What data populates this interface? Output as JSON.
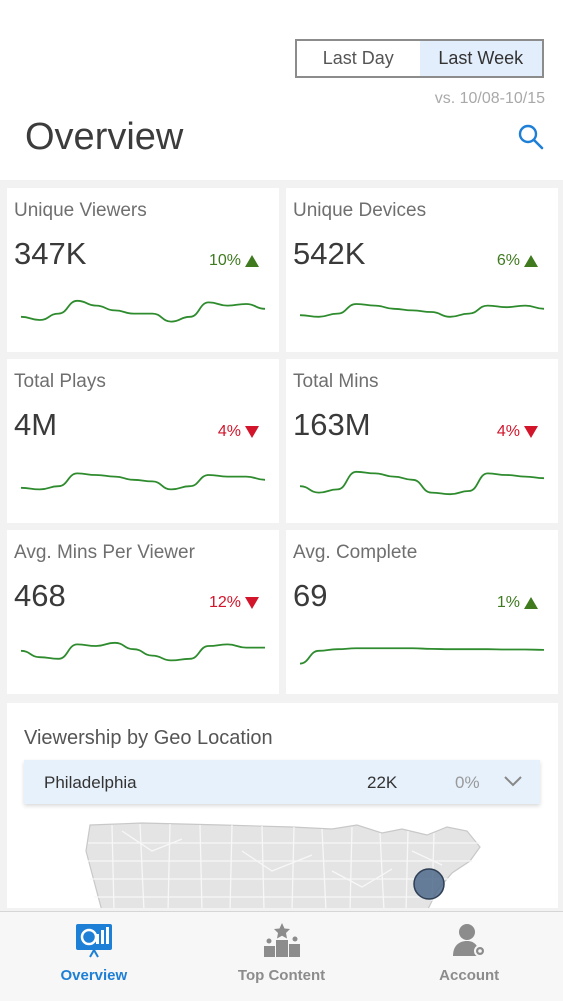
{
  "header": {
    "segments": [
      {
        "label": "Last Day",
        "active": false
      },
      {
        "label": "Last Week",
        "active": true
      }
    ],
    "comparison": "vs. 10/08-10/15",
    "title": "Overview"
  },
  "metrics": [
    {
      "title": "Unique Viewers",
      "value": "347K",
      "change": "10%",
      "direction": "up",
      "trend": [
        0.35,
        0.25,
        0.45,
        0.85,
        0.7,
        0.55,
        0.45,
        0.45,
        0.2,
        0.35,
        0.8,
        0.7,
        0.75,
        0.6
      ]
    },
    {
      "title": "Unique Devices",
      "value": "542K",
      "change": "6%",
      "direction": "up",
      "trend": [
        0.4,
        0.35,
        0.45,
        0.75,
        0.7,
        0.6,
        0.55,
        0.5,
        0.35,
        0.45,
        0.7,
        0.65,
        0.7,
        0.6
      ]
    },
    {
      "title": "Total Plays",
      "value": "4M",
      "change": "4%",
      "direction": "down",
      "trend": [
        0.35,
        0.3,
        0.4,
        0.8,
        0.75,
        0.7,
        0.6,
        0.55,
        0.3,
        0.4,
        0.75,
        0.7,
        0.7,
        0.6
      ]
    },
    {
      "title": "Total Mins",
      "value": "163M",
      "change": "4%",
      "direction": "down",
      "trend": [
        0.4,
        0.2,
        0.3,
        0.85,
        0.8,
        0.7,
        0.6,
        0.2,
        0.15,
        0.25,
        0.8,
        0.75,
        0.7,
        0.65
      ]
    },
    {
      "title": "Avg. Mins Per Viewer",
      "value": "468",
      "change": "12%",
      "direction": "down",
      "trend": [
        0.6,
        0.4,
        0.35,
        0.8,
        0.75,
        0.85,
        0.65,
        0.45,
        0.3,
        0.35,
        0.75,
        0.8,
        0.7,
        0.7
      ]
    },
    {
      "title": "Avg. Complete",
      "value": "69",
      "change": "1%",
      "direction": "up",
      "trend": [
        0.2,
        0.6,
        0.65,
        0.68,
        0.68,
        0.68,
        0.68,
        0.66,
        0.65,
        0.65,
        0.65,
        0.64,
        0.64,
        0.63
      ]
    }
  ],
  "geo": {
    "title": "Viewership by Geo Location",
    "city": "Philadelphia",
    "count": "22K",
    "percent": "0%"
  },
  "tabs": [
    {
      "label": "Overview",
      "icon": "overview-icon",
      "active": true
    },
    {
      "label": "Top Content",
      "icon": "top-content-icon",
      "active": false
    },
    {
      "label": "Account",
      "icon": "account-icon",
      "active": false
    }
  ],
  "colors": {
    "accent": "#1e7fd6",
    "up": "#3f7a1f",
    "down": "#d2152b",
    "sparkline": "#2e8b2e"
  }
}
